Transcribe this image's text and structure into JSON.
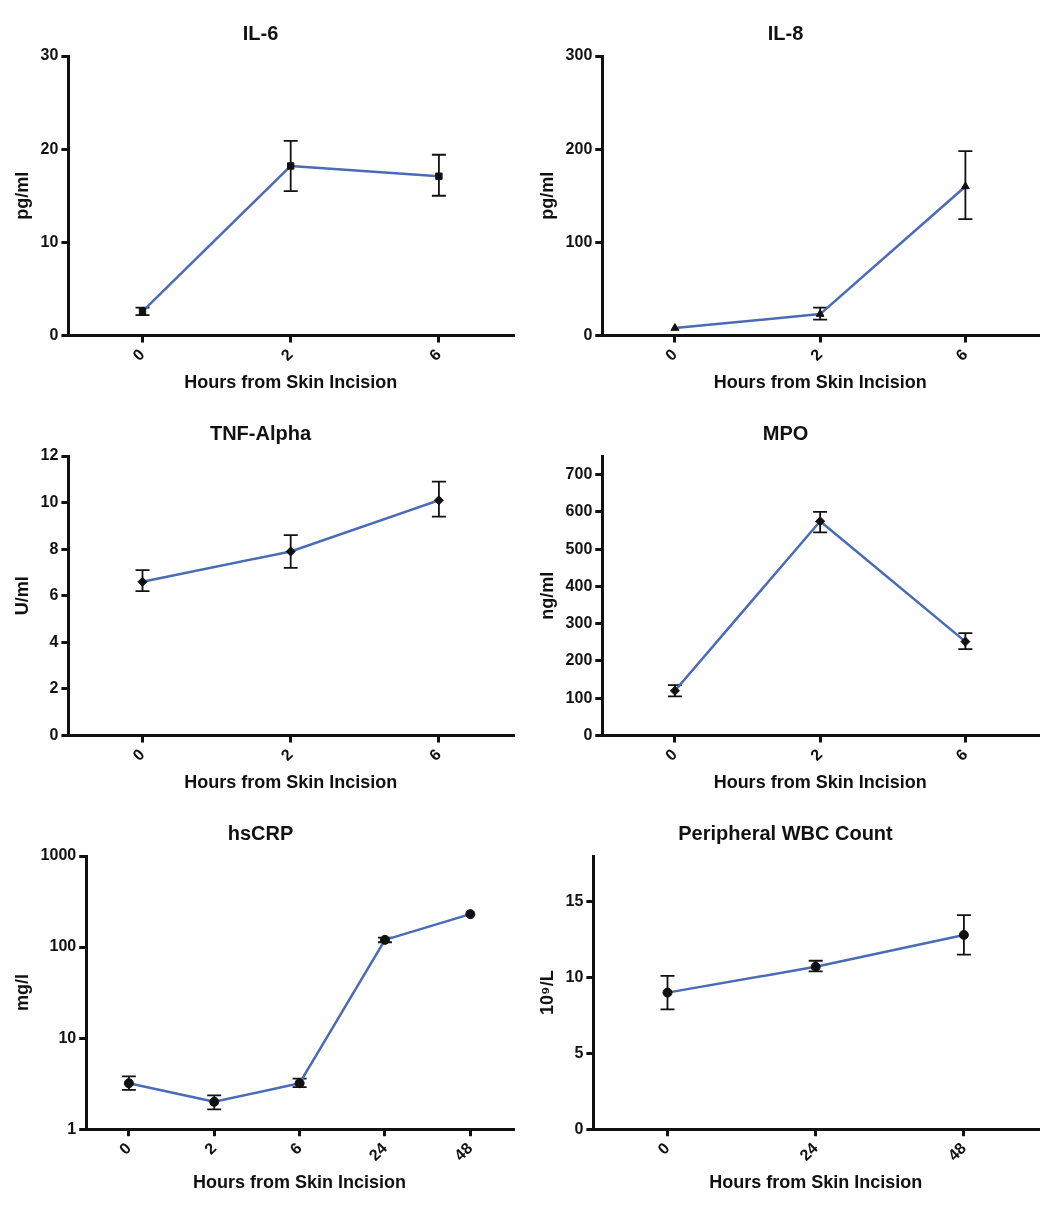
{
  "chart_data": [
    {
      "type": "line",
      "title": "IL-6",
      "xlabel": "Hours from Skin Incision",
      "ylabel": "pg/ml",
      "categories": [
        "0",
        "2",
        "6"
      ],
      "ylim": [
        0,
        30
      ],
      "yticks": [
        0,
        10,
        20,
        30
      ],
      "marker": "square",
      "grid": false,
      "legend": false,
      "series": [
        {
          "color": "#4a6bb5",
          "values": [
            2.6,
            18.2,
            17.1
          ],
          "errors": [
            [
              2.2,
              3.0
            ],
            [
              15.5,
              20.9
            ],
            [
              15.0,
              19.4
            ]
          ]
        }
      ]
    },
    {
      "type": "line",
      "title": "IL-8",
      "xlabel": "Hours from Skin Incision",
      "ylabel": "pg/ml",
      "categories": [
        "0",
        "2",
        "6"
      ],
      "ylim": [
        0,
        300
      ],
      "yticks": [
        0,
        100,
        200,
        300
      ],
      "marker": "triangle",
      "grid": false,
      "legend": false,
      "series": [
        {
          "color": "#4a6bb5",
          "values": [
            8,
            23,
            160
          ],
          "errors": [
            null,
            [
              17,
              30
            ],
            [
              125,
              198
            ]
          ]
        }
      ]
    },
    {
      "type": "line",
      "title": "TNF-Alpha",
      "xlabel": "Hours from Skin Incision",
      "ylabel": "U/ml",
      "categories": [
        "0",
        "2",
        "6"
      ],
      "ylim": [
        0,
        12
      ],
      "yticks": [
        0,
        2,
        4,
        6,
        8,
        10,
        12
      ],
      "marker": "diamond",
      "grid": false,
      "legend": false,
      "series": [
        {
          "color": "#4a6bb5",
          "values": [
            6.6,
            7.9,
            10.1
          ],
          "errors": [
            [
              6.2,
              7.1
            ],
            [
              7.2,
              8.6
            ],
            [
              9.4,
              10.9
            ]
          ]
        }
      ]
    },
    {
      "type": "line",
      "title": "MPO",
      "xlabel": "Hours from Skin Incision",
      "ylabel": "ng/ml",
      "categories": [
        "0",
        "2",
        "6"
      ],
      "ylim": [
        0,
        750
      ],
      "yticks": [
        0,
        100,
        200,
        300,
        400,
        500,
        600,
        700
      ],
      "marker": "diamond",
      "grid": false,
      "legend": false,
      "series": [
        {
          "color": "#4a6bb5",
          "values": [
            120,
            575,
            252
          ],
          "errors": [
            [
              105,
              135
            ],
            [
              545,
              600
            ],
            [
              232,
              275
            ]
          ]
        }
      ]
    },
    {
      "type": "line",
      "title": "hsCRP",
      "xlabel": "Hours from Skin Incision",
      "ylabel": "mg/l",
      "categories": [
        "0",
        "2",
        "6",
        "24",
        "48"
      ],
      "log": "y",
      "ylim": [
        1,
        1000
      ],
      "yticks": [
        1,
        10,
        100,
        1000
      ],
      "marker": "circle",
      "grid": false,
      "legend": false,
      "series": [
        {
          "color": "#4a6bb5",
          "values": [
            3.2,
            2.0,
            3.2,
            120,
            230
          ],
          "errors": [
            [
              2.7,
              3.8
            ],
            [
              1.65,
              2.35
            ],
            [
              2.9,
              3.6
            ],
            [
              113,
              127
            ],
            null
          ]
        }
      ]
    },
    {
      "type": "line",
      "title": "Peripheral WBC Count",
      "xlabel": "Hours from Skin Incision",
      "ylabel": "10⁹/L",
      "categories": [
        "0",
        "24",
        "48"
      ],
      "ylim": [
        0,
        18
      ],
      "yticks": [
        0,
        5,
        10,
        15
      ],
      "marker": "circle",
      "grid": false,
      "legend": false,
      "series": [
        {
          "color": "#4a6bb5",
          "values": [
            9.0,
            10.7,
            12.8
          ],
          "errors": [
            [
              7.9,
              10.1
            ],
            [
              10.4,
              11.1
            ],
            [
              11.5,
              14.1
            ]
          ]
        }
      ]
    }
  ]
}
